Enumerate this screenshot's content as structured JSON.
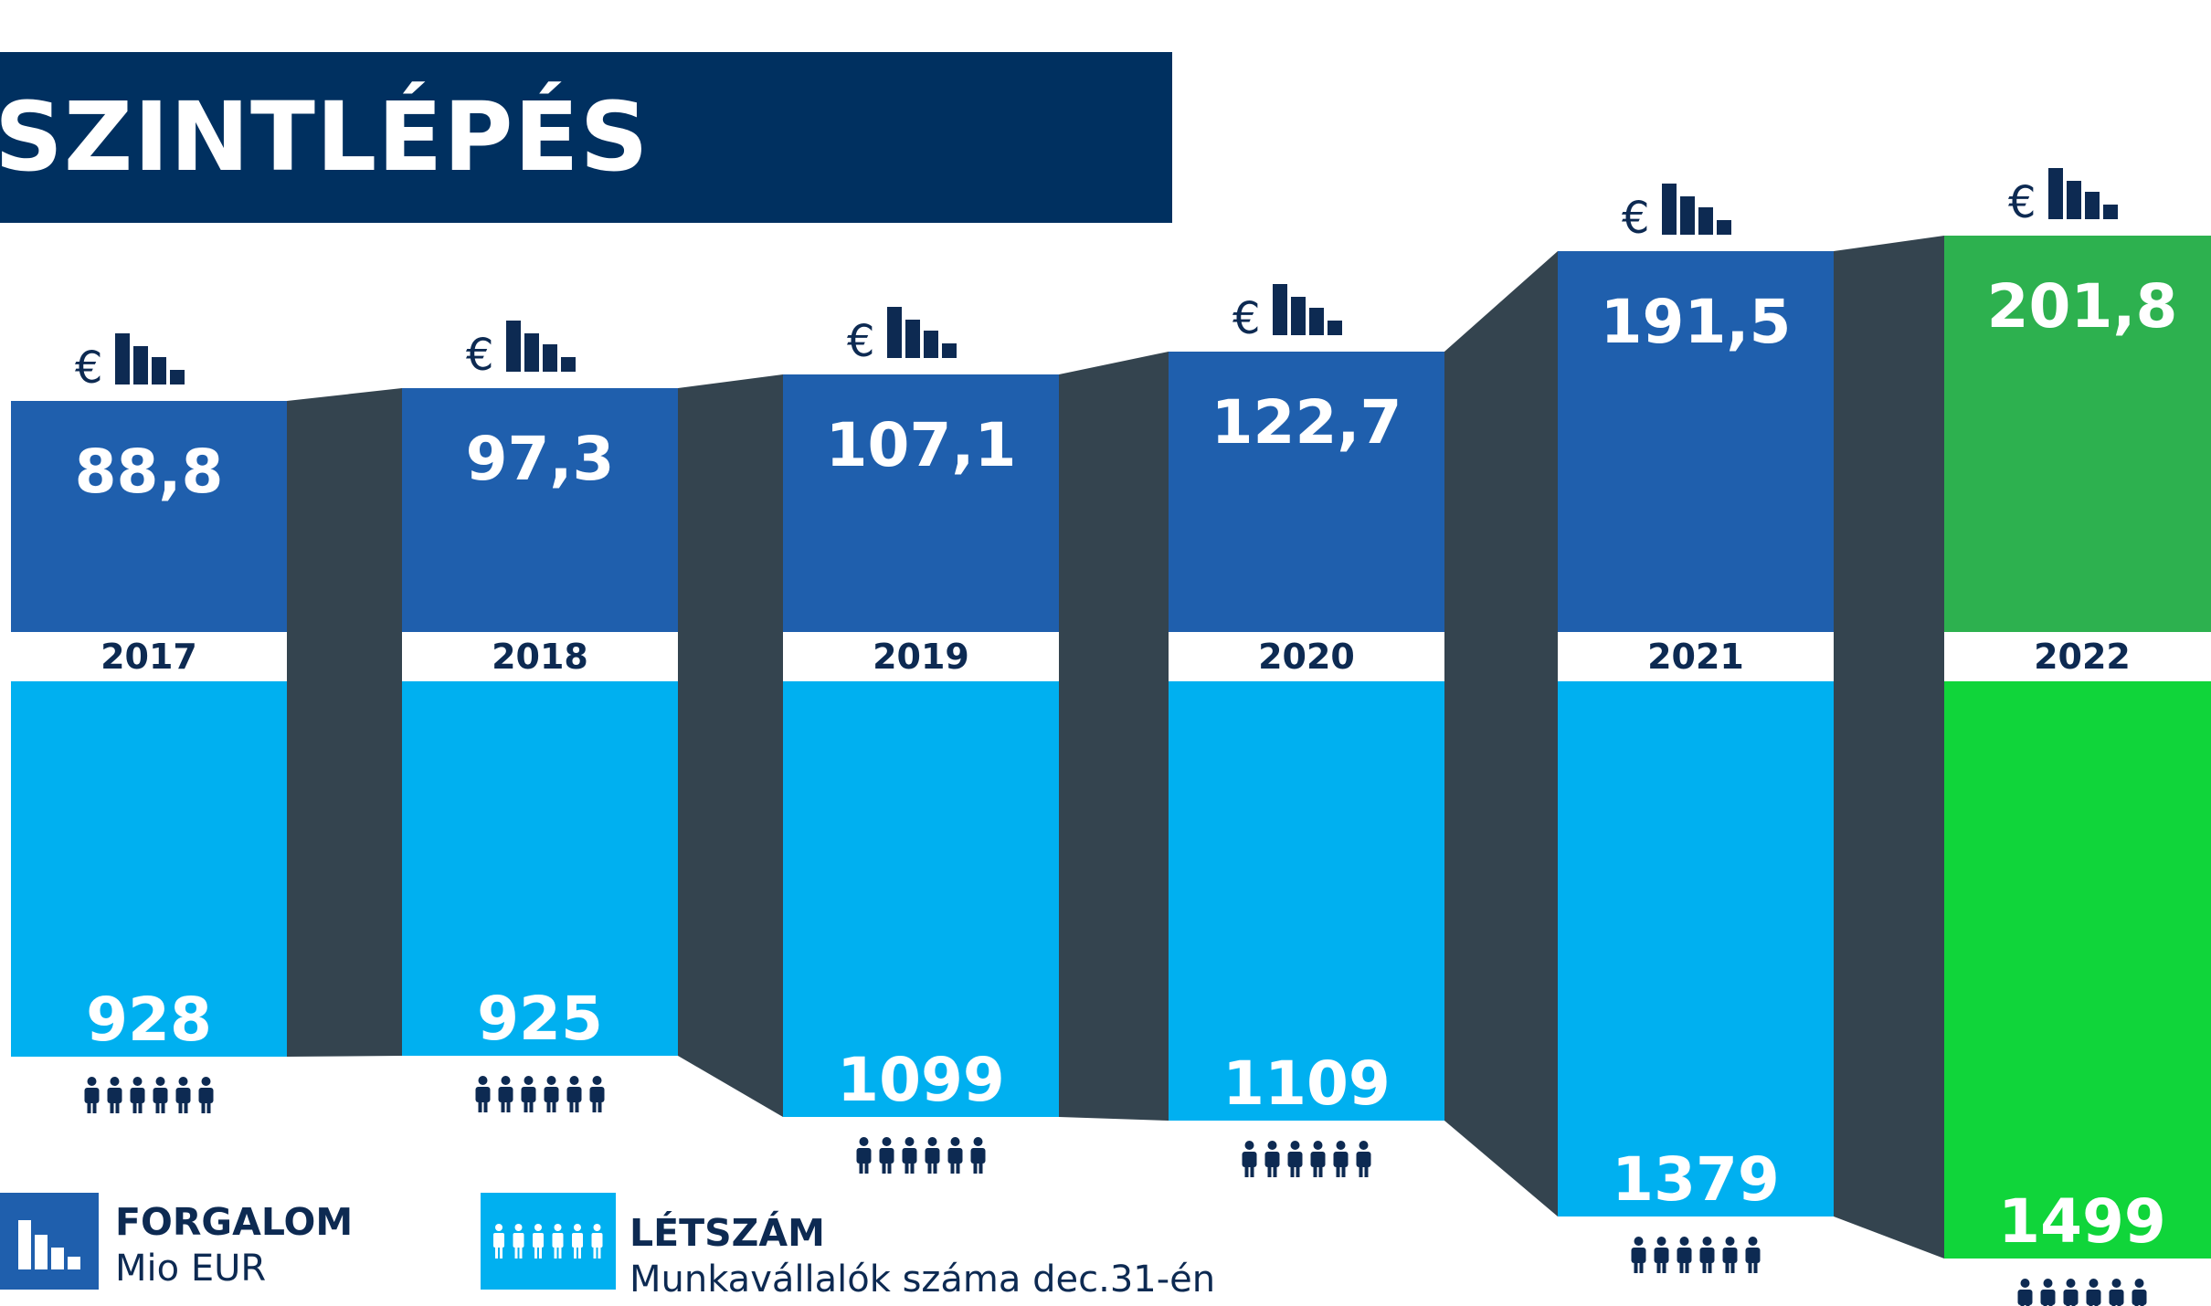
{
  "title": "SZINTLÉPÉS",
  "legend": {
    "revenue": {
      "title": "FORGALOM",
      "subtitle": "Mio EUR",
      "icon": "bar-chart-icon"
    },
    "headcount": {
      "title": "LÉTSZÁM",
      "subtitle": "Munkavállalók száma dec.31-én",
      "icon": "people-icon"
    }
  },
  "currency_symbol": "€",
  "colors": {
    "revenue": "#1f5fad",
    "headcount": "#00b0f0",
    "revenue_highlight": "#2db14f",
    "headcount_highlight": "#10d53a",
    "connector": "#34444f",
    "title_bg": "#003060",
    "label_dark": "#0d2a52"
  },
  "chart_data": {
    "type": "bar",
    "categories": [
      "2017",
      "2018",
      "2019",
      "2020",
      "2021",
      "2022"
    ],
    "series": [
      {
        "name": "FORGALOM",
        "values": [
          88.8,
          97.3,
          107.1,
          122.7,
          191.5,
          201.8
        ],
        "labels": [
          "88,8",
          "97,3",
          "107,1",
          "122,7",
          "191,5",
          "201,8"
        ]
      },
      {
        "name": "LÉTSZÁM",
        "values": [
          928,
          925,
          1099,
          1109,
          1379,
          1499
        ],
        "labels": [
          "928",
          "925",
          "1099",
          "1109",
          "1379",
          "1499"
        ]
      }
    ],
    "highlight_category": "2022",
    "orientation": "mirrored",
    "grid": false
  }
}
